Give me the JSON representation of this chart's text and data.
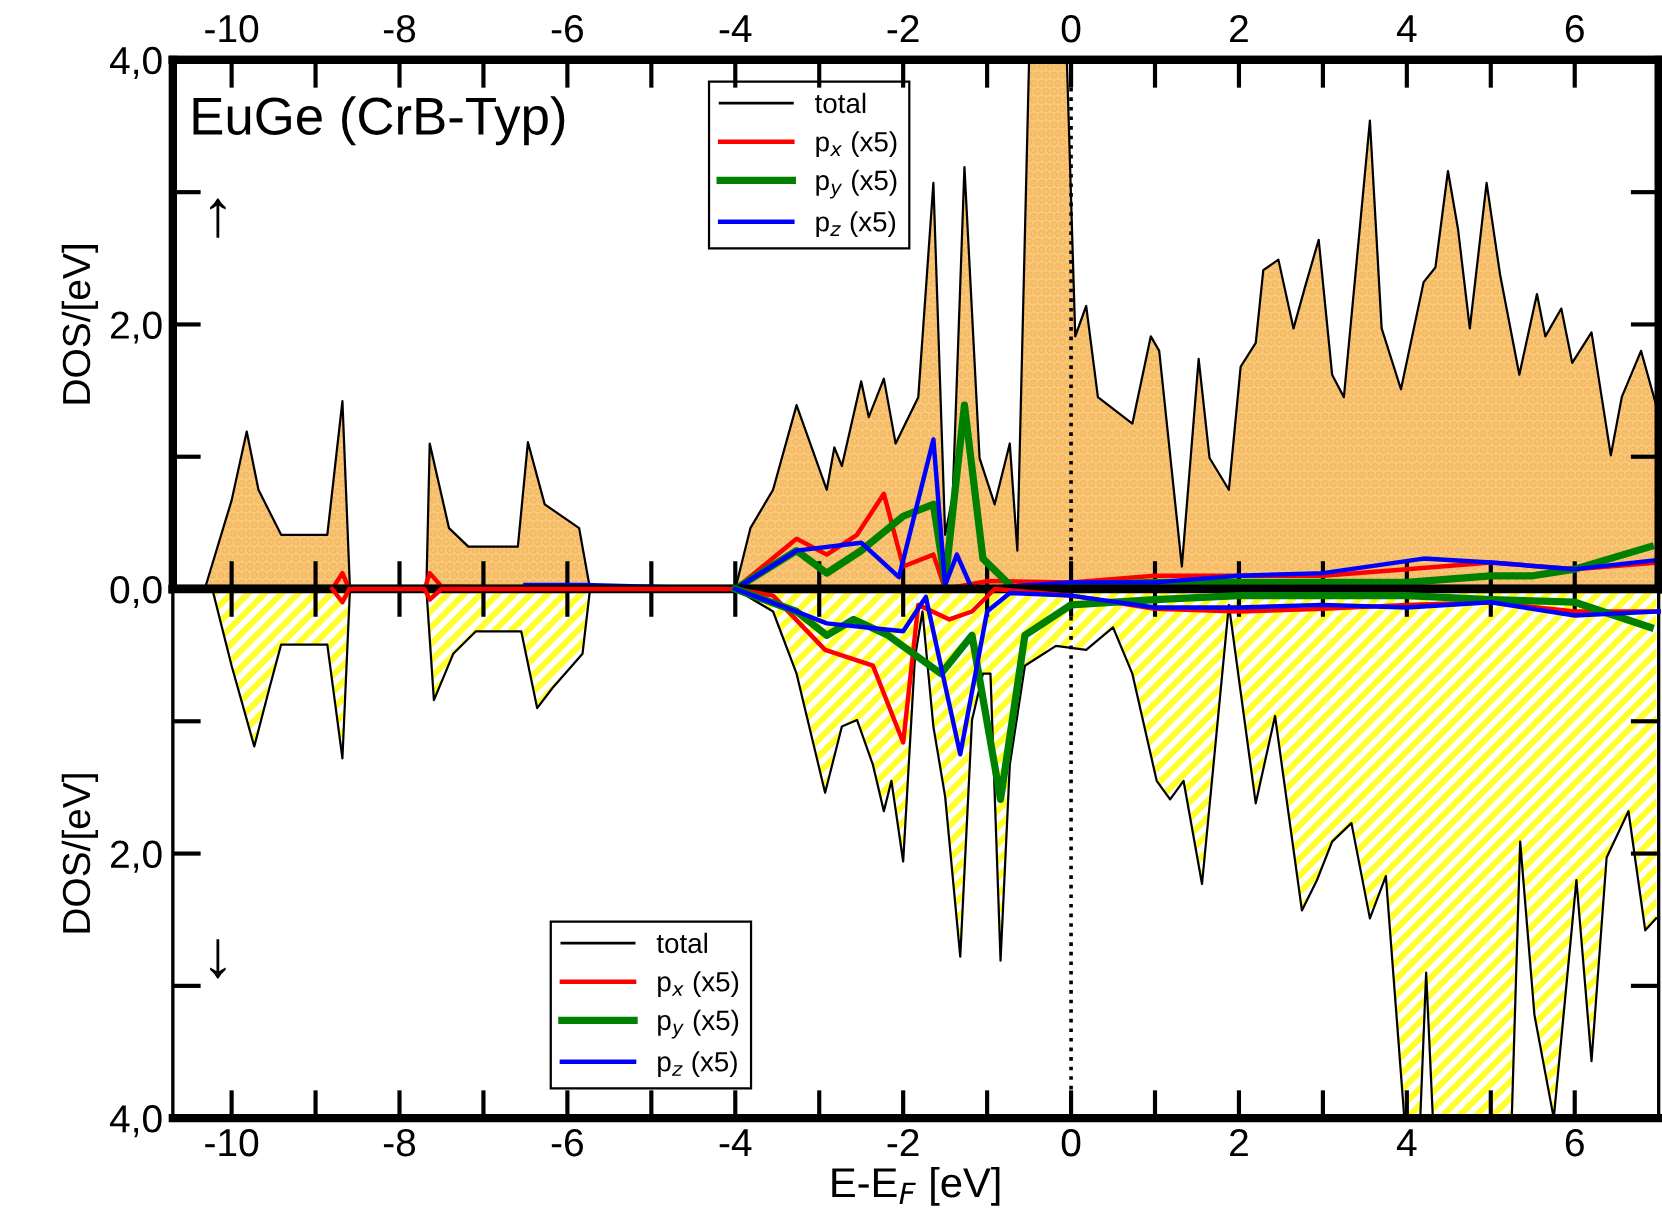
{
  "chart_data": [
    {
      "type": "area",
      "ylabel": "DOS/[eV]",
      "xlim": [
        -10.7,
        7
      ],
      "ylim": [
        0,
        4
      ],
      "x2lim": [
        -10.7,
        7
      ],
      "x2ticks": [
        -10,
        {
          "value": -9,
          "label": null
        },
        -8,
        {
          "value": -7,
          "label": null
        },
        -6,
        {
          "value": -5,
          "label": null
        },
        -4,
        {
          "value": -3,
          "label": null
        },
        -2,
        {
          "value": -1,
          "label": null
        },
        0,
        {
          "value": 1,
          "label": null
        },
        2,
        {
          "value": 3,
          "label": null
        },
        4,
        {
          "value": 5,
          "label": null
        },
        6
      ],
      "yticks": [
        {
          "value": 0,
          "label": "0,0"
        },
        {
          "value": 1,
          "label": null
        },
        {
          "value": 2,
          "label": "2,0"
        },
        {
          "value": 3,
          "label": null
        },
        {
          "value": 4,
          "label": "4,0"
        }
      ],
      "tick_labels": "y",
      "legend": "top",
      "grid": false,
      "annotations": [
        "EuGe (CrB-Typ)",
        "↑"
      ],
      "ref_lines": [
        {
          "axis": "x",
          "value": 0,
          "line_style": "dotted"
        }
      ],
      "series": [
        {
          "name": "total",
          "type": "area",
          "color": "#000000",
          "x": [
            -10.32,
            -10.0,
            -9.82,
            -9.68,
            -9.41,
            -8.86,
            -8.68,
            -8.59,
            -7.68,
            -7.64,
            -7.41,
            -7.18,
            -6.59,
            -6.47,
            -6.27,
            -5.86,
            -5.73,
            -4.0,
            -3.82,
            -3.55,
            -3.27,
            -2.91,
            -2.82,
            -2.73,
            -2.5,
            -2.41,
            -2.23,
            -2.09,
            -1.82,
            -1.64,
            -1.5,
            -1.41,
            -1.27,
            -1.09,
            -0.91,
            -0.73,
            -0.64,
            -0.5,
            -0.05,
            0.05,
            0.18,
            0.32,
            0.73,
            0.95,
            1.05,
            1.32,
            1.52,
            1.65,
            1.88,
            2.02,
            2.2,
            2.29,
            2.47,
            2.65,
            2.79,
            2.95,
            3.11,
            3.25,
            3.56,
            3.7,
            3.93,
            4.2,
            4.34,
            4.49,
            4.61,
            4.75,
            4.95,
            5.11,
            5.34,
            5.55,
            5.65,
            5.84,
            5.97,
            6.2,
            6.43,
            6.56,
            6.79,
            6.97
          ],
          "values": [
            0,
            0.67,
            1.19,
            0.75,
            0.41,
            0.41,
            1.42,
            0,
            0,
            1.1,
            0.46,
            0.32,
            0.32,
            1.11,
            0.64,
            0.46,
            0,
            0,
            0.46,
            0.75,
            1.39,
            0.75,
            1.07,
            0.93,
            1.57,
            1.3,
            1.59,
            1.1,
            1.45,
            3.07,
            0.41,
            0.7,
            3.19,
            0.99,
            0.64,
            1.1,
            0.29,
            4.0,
            4.0,
            1.91,
            2.14,
            1.45,
            1.25,
            1.91,
            1.8,
            0.17,
            1.74,
            0.99,
            0.75,
            1.68,
            1.86,
            2.41,
            2.49,
            1.97,
            2.29,
            2.64,
            1.62,
            1.45,
            3.54,
            1.97,
            1.51,
            2.32,
            2.43,
            3.16,
            2.72,
            1.97,
            3.07,
            2.38,
            1.62,
            2.23,
            1.91,
            2.12,
            1.71,
            1.94,
            1.01,
            1.45,
            1.8,
            1.39
          ]
        },
        {
          "name": "p$_{x}$ (x5)",
          "type": "line",
          "color": "#ff0000",
          "x": [
            -8.8,
            -8.68,
            -8.6,
            -7.7,
            -7.64,
            -7.5,
            -5.8,
            -4.0,
            -3.27,
            -2.91,
            -2.55,
            -2.23,
            -2.0,
            -1.64,
            -1.5,
            -1.0,
            0,
            1.0,
            2.0,
            3.0,
            4.0,
            5.0,
            6.0,
            7.0
          ],
          "values": [
            0,
            0.12,
            0,
            0,
            0.12,
            0.02,
            0,
            0,
            0.38,
            0.26,
            0.41,
            0.72,
            0.17,
            0.26,
            0,
            0.06,
            0.05,
            0.1,
            0.1,
            0.1,
            0.15,
            0.2,
            0.15,
            0.2
          ]
        },
        {
          "name": "p$_{y}$ (x5)",
          "type": "line",
          "color": "#008000",
          "x": [
            -4.0,
            -3.27,
            -2.91,
            -2.5,
            -2.0,
            -1.64,
            -1.5,
            -1.27,
            -1.05,
            -0.68,
            0,
            1.0,
            2.0,
            3.0,
            4.0,
            5.0,
            5.5,
            6.0,
            6.9
          ],
          "values": [
            0,
            0.29,
            0.12,
            0.29,
            0.55,
            0.64,
            0.06,
            1.39,
            0.23,
            0,
            0.03,
            0.05,
            0.05,
            0.05,
            0.05,
            0.1,
            0.1,
            0.15,
            0.32
          ]
        },
        {
          "name": "p$_{z}$ (x5)",
          "type": "line",
          "color": "#0000ff",
          "x": [
            -6.5,
            -5.8,
            -4.0,
            -3.27,
            -2.5,
            -2.05,
            -1.64,
            -1.5,
            -1.36,
            -1.18,
            0,
            1.0,
            2.0,
            3.0,
            4.2,
            5.0,
            6.0,
            7.0
          ],
          "values": [
            0.03,
            0.03,
            0,
            0.29,
            0.35,
            0.09,
            1.13,
            0.03,
            0.26,
            0,
            0.05,
            0.05,
            0.1,
            0.12,
            0.23,
            0.2,
            0.15,
            0.22
          ]
        }
      ]
    },
    {
      "type": "area",
      "ylabel": "DOS/[eV]",
      "xlabel": "E-E$_{F}$ [eV]",
      "xlim": [
        -10.7,
        7
      ],
      "ylim": [
        4,
        0
      ],
      "xticks": [
        -10,
        {
          "value": -9,
          "label": null
        },
        -8,
        {
          "value": -7,
          "label": null
        },
        -6,
        {
          "value": -5,
          "label": null
        },
        -4,
        {
          "value": -3,
          "label": null
        },
        -2,
        {
          "value": -1,
          "label": null
        },
        0,
        {
          "value": 1,
          "label": null
        },
        2,
        {
          "value": 3,
          "label": null
        },
        4,
        {
          "value": 5,
          "label": null
        },
        6
      ],
      "yticks": [
        {
          "value": 0,
          "label": null
        },
        {
          "value": 1,
          "label": null
        },
        {
          "value": 2,
          "label": "2,0"
        },
        {
          "value": 3,
          "label": null
        },
        {
          "value": 4,
          "label": "4,0"
        }
      ],
      "legend": "bottom left",
      "grid": false,
      "annotations": [
        "↓"
      ],
      "ref_lines": [
        {
          "axis": "x",
          "value": 0,
          "line_style": "dotted"
        }
      ],
      "series": [
        {
          "name": "total",
          "type": "area",
          "color": "#000000",
          "x": [
            -10.23,
            -10.0,
            -9.73,
            -9.55,
            -9.41,
            -8.86,
            -8.68,
            -8.59,
            -7.68,
            -7.59,
            -7.36,
            -7.09,
            -6.55,
            -6.36,
            -6.18,
            -5.82,
            -5.73,
            -4.0,
            -3.55,
            -3.27,
            -2.93,
            -2.73,
            -2.55,
            -2.36,
            -2.23,
            -2.14,
            -2.0,
            -1.86,
            -1.77,
            -1.64,
            -1.5,
            -1.32,
            -1.18,
            -1.05,
            -0.96,
            -0.84,
            -0.73,
            -0.55,
            -0.18,
            0.18,
            0.5,
            0.73,
            1.02,
            1.18,
            1.34,
            1.56,
            1.88,
            2.2,
            2.43,
            2.75,
            2.93,
            3.11,
            3.34,
            3.56,
            3.75,
            3.97,
            4.16,
            4.23,
            4.31,
            5.25,
            5.35,
            5.52,
            5.75,
            6.02,
            6.2,
            6.38,
            6.64,
            6.84,
            6.97
          ],
          "values": [
            0,
            0.58,
            1.19,
            0.75,
            0.42,
            0.42,
            1.28,
            0,
            0,
            0.84,
            0.49,
            0.32,
            0.32,
            0.9,
            0.75,
            0.49,
            0,
            0,
            0.17,
            0.64,
            1.54,
            1.04,
            0.99,
            1.33,
            1.68,
            1.45,
            2.06,
            0.52,
            0.17,
            1.04,
            1.57,
            2.78,
            0.99,
            0.64,
            0.64,
            2.81,
            1.33,
            0.58,
            0.43,
            0.46,
            0.29,
            0.64,
            1.45,
            1.59,
            1.45,
            2.23,
            0.12,
            1.62,
            0.96,
            2.43,
            2.2,
            1.91,
            1.77,
            2.49,
            2.17,
            4.0,
            4.0,
            2.9,
            4.0,
            4.0,
            1.91,
            3.22,
            4.0,
            2.2,
            3.57,
            2.03,
            1.68,
            2.58,
            2.49
          ]
        },
        {
          "name": "p$_{x}$ (x5)",
          "type": "line",
          "color": "#ff0000",
          "x": [
            -8.8,
            -8.68,
            -8.6,
            -7.7,
            -7.64,
            -7.5,
            -4.0,
            -3.55,
            -2.93,
            -2.36,
            -2.0,
            -1.82,
            -1.45,
            -1.18,
            -0.91,
            0,
            1.0,
            2.0,
            3.0,
            4.0,
            5.0,
            6.0,
            7.0
          ],
          "values": [
            0,
            0.1,
            0,
            0,
            0.08,
            0,
            0,
            0.05,
            0.46,
            0.58,
            1.16,
            0.12,
            0.23,
            0.17,
            0,
            0.05,
            0.15,
            0.17,
            0.15,
            0.12,
            0.1,
            0.17,
            0.17
          ]
        },
        {
          "name": "p$_{y}$ (x5)",
          "type": "line",
          "color": "#008000",
          "x": [
            -4.0,
            -3.27,
            -2.91,
            -2.59,
            -2.18,
            -1.55,
            -1.18,
            -0.84,
            -0.55,
            0,
            1.0,
            2.0,
            3.0,
            4.0,
            5.0,
            6.0,
            6.9
          ],
          "values": [
            0,
            0.17,
            0.35,
            0.23,
            0.35,
            0.64,
            0.35,
            1.59,
            0.35,
            0.12,
            0.08,
            0.05,
            0.05,
            0.05,
            0.08,
            0.1,
            0.29
          ]
        },
        {
          "name": "p$_{z}$ (x5)",
          "type": "line",
          "color": "#0000ff",
          "x": [
            -4.0,
            -3.27,
            -2.91,
            -2.0,
            -1.73,
            -1.32,
            -1.0,
            -0.73,
            0,
            1.0,
            2.0,
            3.0,
            4.0,
            5.0,
            6.0,
            7.0
          ],
          "values": [
            0,
            0.17,
            0.26,
            0.32,
            0.06,
            1.25,
            0.17,
            0.03,
            0.05,
            0.14,
            0.14,
            0.12,
            0.14,
            0.1,
            0.2,
            0.17
          ]
        }
      ]
    }
  ]
}
